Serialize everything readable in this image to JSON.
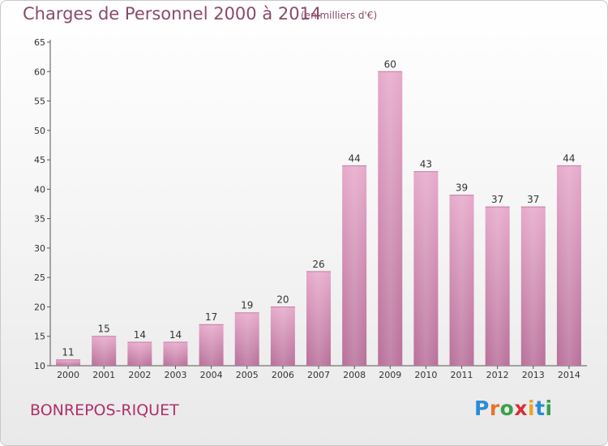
{
  "chart_data": {
    "type": "bar",
    "title": "Charges de Personnel 2000 à 2014",
    "subtitle": "(en milliers d'€)",
    "categories": [
      "2000",
      "2001",
      "2002",
      "2003",
      "2004",
      "2005",
      "2006",
      "2007",
      "2008",
      "2009",
      "2010",
      "2011",
      "2012",
      "2013",
      "2014"
    ],
    "values": [
      11,
      15,
      14,
      14,
      17,
      19,
      20,
      26,
      44,
      60,
      43,
      39,
      37,
      37,
      44
    ],
    "ylim": [
      10,
      65
    ],
    "yticks": [
      10,
      15,
      20,
      25,
      30,
      35,
      40,
      45,
      50,
      55,
      60,
      65
    ],
    "xlabel": "",
    "ylabel": "",
    "grid": false,
    "bar_color": "#d98fb8"
  },
  "place_name": "BONREPOS-RIQUET",
  "logo": {
    "letters": [
      "P",
      "r",
      "o",
      "x",
      "i",
      "t",
      "i"
    ],
    "colors": [
      "#2b8bd6",
      "#e8732a",
      "#3aa04a",
      "#d6303a",
      "#e8a42a",
      "#2b8bd6",
      "#3aa04a"
    ]
  }
}
